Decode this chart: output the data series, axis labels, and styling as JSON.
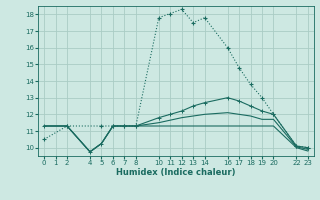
{
  "bg_color": "#cde8e2",
  "grid_color": "#aaccc5",
  "line_color": "#1a6b60",
  "xlabel": "Humidex (Indice chaleur)",
  "xlim": [
    -0.5,
    23.5
  ],
  "ylim": [
    9.5,
    18.5
  ],
  "yticks": [
    10,
    11,
    12,
    13,
    14,
    15,
    16,
    17,
    18
  ],
  "xticks": [
    0,
    1,
    2,
    4,
    5,
    6,
    7,
    8,
    10,
    11,
    12,
    13,
    14,
    16,
    17,
    18,
    19,
    20,
    22,
    23
  ],
  "line1_x": [
    0,
    2,
    5,
    6,
    7,
    8,
    10,
    11,
    12,
    13,
    14,
    16,
    17,
    18,
    19,
    20,
    22,
    23
  ],
  "line1_y": [
    10.5,
    11.3,
    11.3,
    11.3,
    11.3,
    11.3,
    17.8,
    18.05,
    18.3,
    17.5,
    17.8,
    16.0,
    14.8,
    13.8,
    13.0,
    12.0,
    10.1,
    10.0
  ],
  "line2_x": [
    0,
    2,
    4,
    5,
    6,
    7,
    8,
    10,
    11,
    12,
    13,
    14,
    16,
    17,
    18,
    19,
    20,
    22,
    23
  ],
  "line2_y": [
    11.3,
    11.3,
    9.75,
    10.25,
    11.3,
    11.3,
    11.3,
    11.8,
    12.0,
    12.2,
    12.5,
    12.7,
    13.0,
    12.8,
    12.5,
    12.2,
    12.0,
    10.1,
    10.0
  ],
  "line3_x": [
    0,
    2,
    4,
    5,
    6,
    7,
    8,
    10,
    11,
    12,
    13,
    14,
    16,
    17,
    18,
    19,
    20,
    22,
    23
  ],
  "line3_y": [
    11.3,
    11.3,
    9.75,
    10.25,
    11.3,
    11.3,
    11.3,
    11.5,
    11.65,
    11.8,
    11.9,
    12.0,
    12.1,
    12.0,
    11.9,
    11.7,
    11.7,
    10.05,
    9.9
  ],
  "line4_x": [
    0,
    2,
    4,
    5,
    6,
    7,
    8,
    14,
    20,
    22,
    23
  ],
  "line4_y": [
    11.3,
    11.3,
    9.75,
    10.25,
    11.3,
    11.3,
    11.3,
    11.3,
    11.3,
    10.0,
    9.8
  ]
}
